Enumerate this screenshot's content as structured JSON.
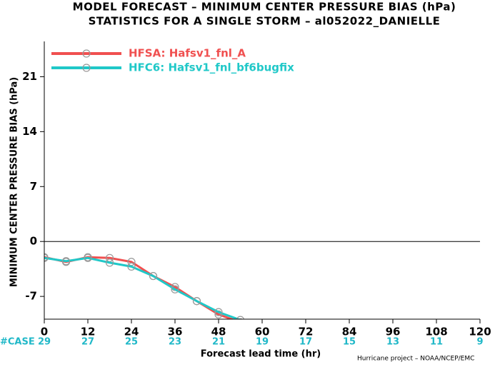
{
  "chart_data": {
    "type": "line",
    "title": "MODEL FORECAST – MINIMUM CENTER PRESSURE BIAS (hPa)",
    "subtitle": "STATISTICS FOR A SINGLE STORM – al052022_DANIELLE",
    "x_label": "Forecast lead time (hr)",
    "y_label": "MINIMUM CENTER PRESSURE BIAS (hPa)",
    "x": [
      0,
      6,
      12,
      18,
      24,
      30,
      36,
      42,
      48,
      54
    ],
    "series": [
      {
        "name": "HFSA: Hafsv1_fnl_A",
        "color": "#f05050",
        "values": [
          -2.0,
          -2.6,
          -2.0,
          -2.1,
          -2.6,
          -4.4,
          -5.8,
          -7.6,
          -9.3,
          -10.3
        ]
      },
      {
        "name": "HFC6: Hafsv1_fnl_bf6bugfix",
        "color": "#20c8c8",
        "values": [
          -2.1,
          -2.5,
          -2.1,
          -2.7,
          -3.2,
          -4.4,
          -6.1,
          -7.6,
          -9.0,
          -10.0
        ]
      }
    ],
    "xlim": [
      0,
      120
    ],
    "xticks": [
      0,
      12,
      24,
      36,
      48,
      60,
      72,
      84,
      96,
      108,
      120
    ],
    "ylim": [
      -9.9,
      25.5
    ],
    "yticks": [
      -7,
      0,
      7,
      14,
      21
    ],
    "case_label": "#CASE",
    "case_counts": [
      29,
      27,
      25,
      23,
      21,
      19,
      17,
      15,
      13,
      11,
      9
    ],
    "footer": "Hurricane project – NOAA/NCEP/EMC"
  }
}
